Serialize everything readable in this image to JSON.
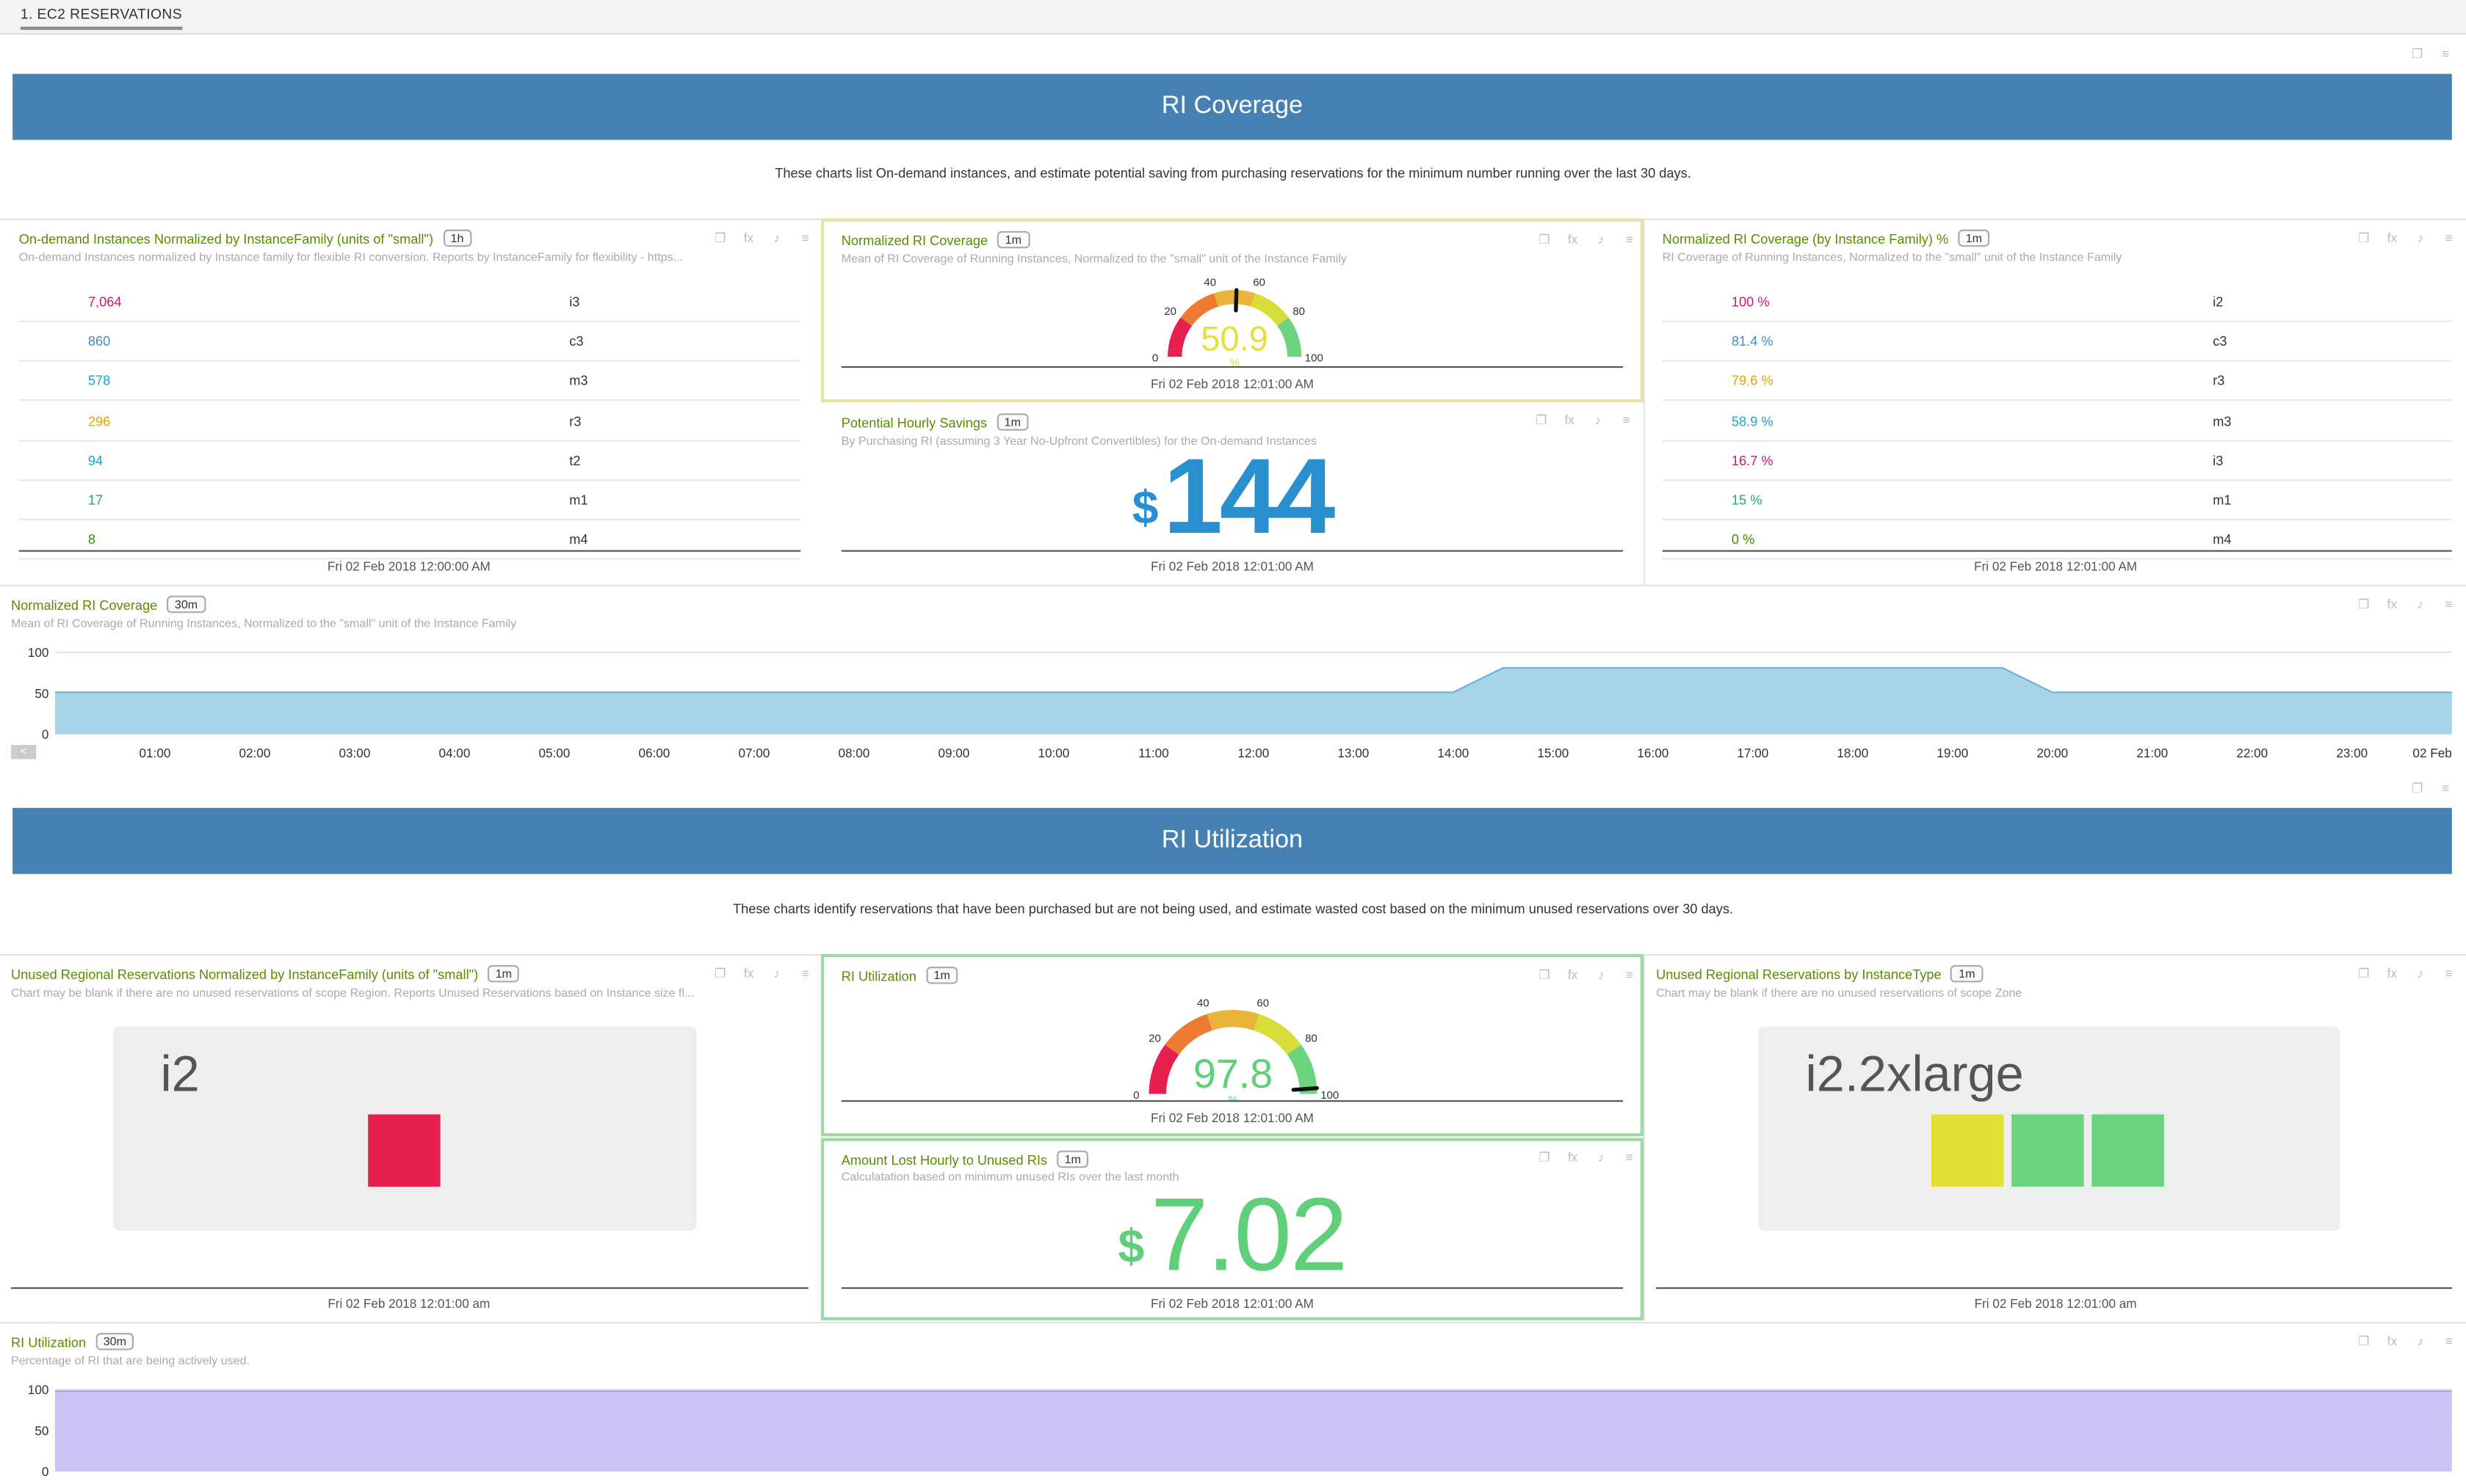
{
  "tab": {
    "label": "1. EC2 RESERVATIONS"
  },
  "coverage_section": {
    "title": "RI Coverage",
    "description": "These charts list On-demand instances, and estimate potential saving from purchasing reservations for the minimum number running over the last 30 days."
  },
  "ondemand_panel": {
    "title": "On-demand Instances Normalized by InstanceFamily (units of \"small\")",
    "interval": "1h",
    "subtitle": "On-demand Instances normalized by Instance family for flexible RI conversion. Reports by InstanceFamily for flexibility - https...",
    "rows": [
      {
        "value": "7,064",
        "key": "i3",
        "color": "#c8176e"
      },
      {
        "value": "860",
        "key": "c3",
        "color": "#3f8fc8"
      },
      {
        "value": "578",
        "key": "m3",
        "color": "#1aa7c9"
      },
      {
        "value": "296",
        "key": "r3",
        "color": "#e0a500"
      },
      {
        "value": "94",
        "key": "t2",
        "color": "#1aa7c9"
      },
      {
        "value": "17",
        "key": "m1",
        "color": "#22aa66"
      },
      {
        "value": "8",
        "key": "m4",
        "color": "#3a8f00"
      }
    ],
    "timestamp": "Fri 02 Feb 2018 12:00:00 AM"
  },
  "coverage_gauge": {
    "title": "Normalized RI Coverage",
    "interval": "1m",
    "subtitle": "Mean of RI Coverage of Running Instances, Normalized to the \"small\" unit of the Instance Family",
    "value": "50.9",
    "unit": "%",
    "level": 0.509,
    "ticks": [
      "0",
      "20",
      "40",
      "60",
      "80",
      "100"
    ],
    "value_color": "#e8e03a",
    "timestamp": "Fri 02 Feb 2018 12:01:00 AM"
  },
  "savings_panel": {
    "title": "Potential Hourly Savings",
    "interval": "1m",
    "subtitle": "By Purchasing RI (assuming 3 Year No-Upfront Convertibles) for the On-demand Instances",
    "currency": "$",
    "value": "144",
    "color": "#2a8fcf",
    "timestamp": "Fri 02 Feb 2018 12:01:00 AM"
  },
  "family_panel": {
    "title": "Normalized RI Coverage (by Instance Family) %",
    "interval": "1m",
    "subtitle": "RI Coverage of Running Instances, Normalized to the \"small\" unit of the Instance Family",
    "rows": [
      {
        "value": "100 %",
        "key": "i2",
        "color": "#c8176e"
      },
      {
        "value": "81.4 %",
        "key": "c3",
        "color": "#3f8fc8"
      },
      {
        "value": "79.6 %",
        "key": "r3",
        "color": "#e0a500"
      },
      {
        "value": "58.9 %",
        "key": "m3",
        "color": "#1aa7c9"
      },
      {
        "value": "16.7 %",
        "key": "i3",
        "color": "#c8176e"
      },
      {
        "value": "15 %",
        "key": "m1",
        "color": "#22aa66"
      },
      {
        "value": "0 %",
        "key": "m4",
        "color": "#3a8f00"
      }
    ],
    "timestamp": "Fri 02 Feb 2018 12:01:00 AM"
  },
  "coverage_chart_panel": {
    "title": "Normalized RI Coverage",
    "interval": "30m",
    "subtitle": "Mean of RI Coverage of Running Instances, Normalized to the \"small\" unit of the Instance Family",
    "nav": "<"
  },
  "utilization_section": {
    "title": "RI Utilization",
    "description": "These charts identify reservations that have been purchased but are not being used, and estimate wasted cost based on the minimum unused reservations over 30 days."
  },
  "unused_regional_panel": {
    "title": "Unused Regional Reservations Normalized by InstanceFamily (units of \"small\")",
    "interval": "1m",
    "subtitle": "Chart may be blank if there are no unused reservations of scope Region. Reports Unused Reservations based on Instance size fl...",
    "label": "i2",
    "cells": [
      "#e8204f"
    ],
    "timestamp": "Fri 02 Feb 2018 12:01:00 am"
  },
  "utilization_gauge": {
    "title": "RI Utilization",
    "interval": "1m",
    "value": "97.8",
    "unit": "%",
    "level": 0.978,
    "ticks": [
      "0",
      "20",
      "40",
      "60",
      "80",
      "100"
    ],
    "value_color": "#5fcf7a",
    "timestamp": "Fri 02 Feb 2018 12:01:00 AM"
  },
  "lost_panel": {
    "title": "Amount Lost Hourly to Unused RIs",
    "interval": "1m",
    "subtitle": "Calculatation based on minimum unused RIs over the last month",
    "currency": "$",
    "value": "7.02",
    "color": "#5fcf7a",
    "timestamp": "Fri 02 Feb 2018 12:01:00 AM"
  },
  "unused_type_panel": {
    "title": "Unused Regional Reservations by InstanceType",
    "interval": "1m",
    "subtitle": "Chart may be blank if there are no unused reservations of scope Zone",
    "label": "i2.2xlarge",
    "cells": [
      "#e3e035",
      "#6cd47e",
      "#6cd47e"
    ],
    "timestamp": "Fri 02 Feb 2018 12:01:00 am"
  },
  "utilization_chart_panel": {
    "title": "RI Utilization",
    "interval": "30m",
    "subtitle": "Percentage of RI that are being actively used."
  },
  "chart_data": [
    {
      "type": "area",
      "title": "Normalized RI Coverage",
      "x": [
        "00:00",
        "00:30",
        "01:00",
        "01:30",
        "02:00",
        "02:30",
        "03:00",
        "03:30",
        "04:00",
        "04:30",
        "05:00",
        "05:30",
        "06:00",
        "06:30",
        "07:00",
        "07:30",
        "08:00",
        "08:30",
        "09:00",
        "09:30",
        "10:00",
        "10:30",
        "11:00",
        "11:30",
        "12:00",
        "12:30",
        "13:00",
        "13:30",
        "14:00",
        "14:30",
        "15:00",
        "15:30",
        "16:00",
        "16:30",
        "17:00",
        "17:30",
        "18:00",
        "18:30",
        "19:00",
        "19:30",
        "20:00",
        "20:30",
        "21:00",
        "21:30",
        "22:00",
        "22:30",
        "23:00",
        "23:30",
        "00:00"
      ],
      "x_ticks": [
        "01:00",
        "02:00",
        "03:00",
        "04:00",
        "05:00",
        "06:00",
        "07:00",
        "08:00",
        "09:00",
        "10:00",
        "11:00",
        "12:00",
        "13:00",
        "14:00",
        "15:00",
        "16:00",
        "17:00",
        "18:00",
        "19:00",
        "20:00",
        "21:00",
        "22:00",
        "23:00",
        "02 Feb"
      ],
      "values": [
        51,
        51,
        51,
        51,
        51,
        51,
        51,
        51,
        51,
        51,
        51,
        51,
        51,
        51,
        51,
        51,
        51,
        51,
        51,
        51,
        51,
        51,
        51,
        51,
        51,
        51,
        51,
        51,
        51,
        81,
        81,
        81,
        81,
        81,
        81,
        81,
        81,
        81,
        81,
        81,
        51,
        51,
        51,
        51,
        51,
        51,
        51,
        51,
        51
      ],
      "ylim": [
        0,
        100
      ],
      "y_ticks": [
        "100",
        "50",
        "0"
      ],
      "color": "#a8d4ea"
    },
    {
      "type": "area",
      "title": "RI Utilization",
      "values": [
        98,
        98,
        98,
        98,
        98,
        98,
        98,
        98,
        98,
        98,
        98,
        98,
        98,
        98,
        98,
        98,
        98,
        98,
        98,
        98,
        98,
        98,
        98,
        98,
        98,
        98,
        98,
        98,
        98,
        98,
        98,
        98,
        98,
        98,
        98,
        98,
        98,
        98,
        98,
        98,
        98,
        98,
        98,
        98,
        98,
        98,
        98,
        98,
        98
      ],
      "ylim": [
        0,
        100
      ],
      "y_ticks": [
        "100",
        "50",
        "0"
      ],
      "color": "#cbc3f3"
    }
  ]
}
